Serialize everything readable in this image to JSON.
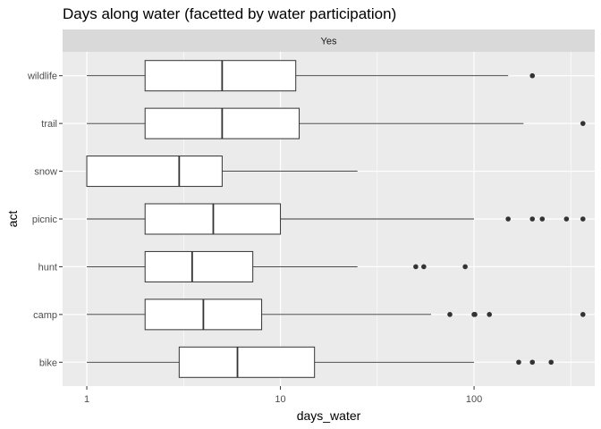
{
  "chart_data": {
    "type": "boxplot",
    "orientation": "horizontal",
    "title": "Days along water (facetted by water participation)",
    "facet": "Yes",
    "xlabel": "days_water",
    "ylabel": "act",
    "x_scale": "log10",
    "xlim": [
      0.75,
      420
    ],
    "x_ticks": [
      1,
      10,
      100
    ],
    "x_tick_labels": [
      "1",
      "10",
      "100"
    ],
    "grid": true,
    "categories": [
      "bike",
      "camp",
      "hunt",
      "picnic",
      "snow",
      "trail",
      "wildlife"
    ],
    "boxes": [
      {
        "category": "bike",
        "whisker_low": 1,
        "q1": 3,
        "median": 6,
        "q3": 15,
        "whisker_high": 100,
        "outliers": [
          170,
          200,
          250
        ]
      },
      {
        "category": "camp",
        "whisker_low": 1,
        "q1": 2,
        "median": 4,
        "q3": 8,
        "whisker_high": 60,
        "outliers": [
          75,
          100,
          101,
          120,
          365
        ]
      },
      {
        "category": "hunt",
        "whisker_low": 1,
        "q1": 2,
        "median": 3.5,
        "q3": 7.2,
        "whisker_high": 25,
        "outliers": [
          50,
          55,
          90
        ]
      },
      {
        "category": "picnic",
        "whisker_low": 1,
        "q1": 2,
        "median": 4.5,
        "q3": 10,
        "whisker_high": 100,
        "outliers": [
          150,
          200,
          225,
          300,
          365
        ]
      },
      {
        "category": "snow",
        "whisker_low": 1,
        "q1": 1,
        "median": 3,
        "q3": 5,
        "whisker_high": 25,
        "outliers": []
      },
      {
        "category": "trail",
        "whisker_low": 1,
        "q1": 2,
        "median": 5,
        "q3": 12.5,
        "whisker_high": 180,
        "outliers": [
          365
        ]
      },
      {
        "category": "wildlife",
        "whisker_low": 1,
        "q1": 2,
        "median": 5,
        "q3": 12,
        "whisker_high": 150,
        "outliers": [
          200
        ]
      }
    ],
    "colors": {
      "panel_bg": "#ebebeb",
      "strip_bg": "#d9d9d9",
      "grid_major": "#ffffff",
      "box_fill": "#ffffff",
      "box_stroke": "#333333",
      "outlier": "#333333"
    }
  }
}
